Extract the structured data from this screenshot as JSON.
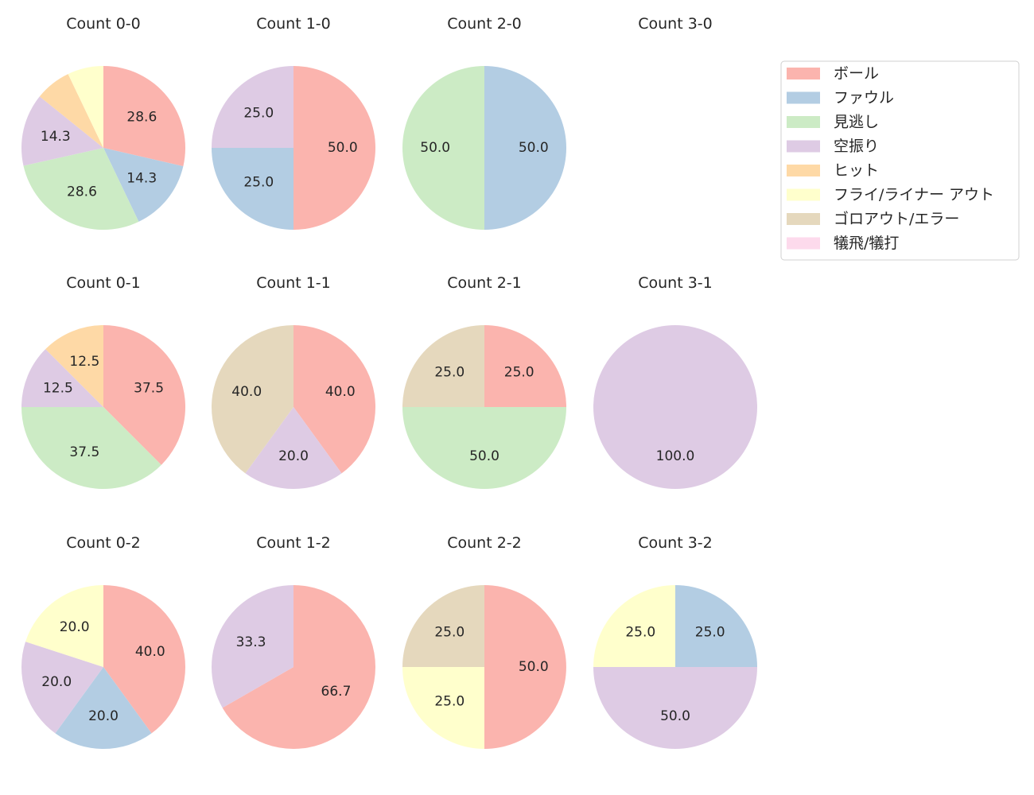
{
  "chart_data": {
    "type": "pie",
    "categories": [
      "ボール",
      "ファウル",
      "見逃し",
      "空振り",
      "ヒット",
      "フライ/ライナー アウト",
      "ゴロアウト/エラー",
      "犠飛/犠打"
    ],
    "colors": [
      "#fbb4ae",
      "#b3cde3",
      "#ccebc5",
      "#decbe4",
      "#fed9a6",
      "#ffffcc",
      "#e5d8bd",
      "#fddaec"
    ],
    "legend_placement": "top-right",
    "start_angle": 90,
    "direction": "clockwise",
    "charts": [
      {
        "title": "Count 0-0",
        "values": [
          28.6,
          14.3,
          28.6,
          14.3,
          7.1,
          7.1,
          0,
          0
        ]
      },
      {
        "title": "Count 1-0",
        "values": [
          50.0,
          25.0,
          0,
          25.0,
          0,
          0,
          0,
          0
        ]
      },
      {
        "title": "Count 2-0",
        "values": [
          0,
          50.0,
          50.0,
          0,
          0,
          0,
          0,
          0
        ]
      },
      {
        "title": "Count 3-0",
        "values": []
      },
      {
        "title": "Count 0-1",
        "values": [
          37.5,
          0,
          37.5,
          12.5,
          12.5,
          0,
          0,
          0
        ]
      },
      {
        "title": "Count 1-1",
        "values": [
          40.0,
          0,
          0,
          20.0,
          0,
          0,
          40.0,
          0
        ]
      },
      {
        "title": "Count 2-1",
        "values": [
          25.0,
          0,
          50.0,
          0,
          0,
          0,
          25.0,
          0
        ]
      },
      {
        "title": "Count 3-1",
        "values": [
          0,
          0,
          0,
          100.0,
          0,
          0,
          0,
          0
        ]
      },
      {
        "title": "Count 0-2",
        "values": [
          40.0,
          20.0,
          0,
          20.0,
          0,
          20.0,
          0,
          0
        ]
      },
      {
        "title": "Count 1-2",
        "values": [
          66.7,
          0,
          0,
          33.3,
          0,
          0,
          0,
          0
        ]
      },
      {
        "title": "Count 2-2",
        "values": [
          50.0,
          0,
          0,
          0,
          0,
          25.0,
          25.0,
          0
        ]
      },
      {
        "title": "Count 3-2",
        "values": [
          0,
          25.0,
          0,
          50.0,
          0,
          25.0,
          0,
          0
        ]
      }
    ]
  }
}
